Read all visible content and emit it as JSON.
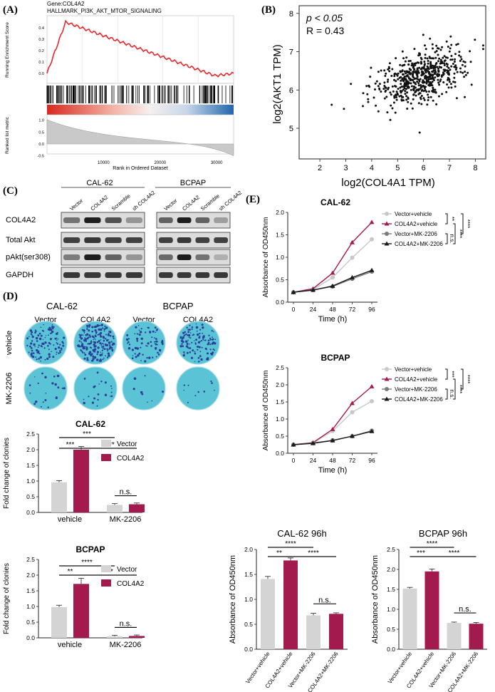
{
  "panel_labels": {
    "A": "(A)",
    "B": "(B)",
    "C": "(C)",
    "D": "(D)",
    "E": "(E)"
  },
  "gsea": {
    "gene": "Gene:COL4A2",
    "set": "HALLMARK_PI3K_AKT_MTOR_SIGNALING",
    "ylabel_top": "Running Enrichment Score",
    "ylabel_bottom": "Ranked list metric",
    "xlabel": "Rank in Ordered Dataset",
    "yticks_top": [
      "0.4",
      "0.3",
      "0.2",
      "0.1",
      "0.0"
    ],
    "yticks_bottom": [
      "1.0",
      "0.5",
      "0.0",
      "-0.5"
    ],
    "xticks": [
      "10000",
      "20000",
      "30000"
    ]
  },
  "scatter": {
    "stat_p": "p < 0.05",
    "stat_r": "R = 0.43",
    "ylabel": "log2(AKT1 TPM)",
    "xlabel": "log2(COL4A1 TPM)",
    "xticks": [
      "2",
      "3",
      "4",
      "5",
      "6",
      "7",
      "8"
    ],
    "yticks": [
      "5",
      "6",
      "7",
      "8"
    ]
  },
  "western": {
    "groups": [
      "CAL-62",
      "BCPAP"
    ],
    "lanes": [
      "Vector",
      "COL4A2",
      "Scramble",
      "sh COL4A2"
    ],
    "rows": [
      "COL4A2",
      "Total Akt",
      "pAkt(ser308)",
      "GAPDH"
    ]
  },
  "colony_images": {
    "groups": [
      "CAL-62",
      "BCPAP"
    ],
    "cols": [
      "Vector",
      "COL4A2",
      "Vector",
      "COL4A2"
    ],
    "rows": [
      "vehicle",
      "MK-2206"
    ]
  },
  "colors": {
    "vector": "#d4d4d4",
    "col4a2": "#a31a4f",
    "dish": "#5bc3d6",
    "gray_line": "#7a7a7a",
    "light_line": "#c8c8c8",
    "black": "#1a1a1a"
  },
  "chart_data": [
    {
      "type": "bar",
      "id": "clone_cal62",
      "title": "CAL-62",
      "ylabel": "Fold change of clonies",
      "ylim": [
        0,
        2.5
      ],
      "yticks": [
        "0.0",
        "0.5",
        "1.0",
        "1.5",
        "2.0",
        "2.5"
      ],
      "categories": [
        "vehicle",
        "MK-2206"
      ],
      "series": [
        {
          "name": "Vector",
          "values": [
            0.96,
            0.24
          ]
        },
        {
          "name": "COL4A2",
          "values": [
            2.0,
            0.26
          ]
        }
      ],
      "errors": [
        [
          0.05,
          0.04
        ],
        [
          0.1,
          0.04
        ]
      ],
      "sig": [
        "***",
        "***",
        "****",
        "n.s."
      ]
    },
    {
      "type": "bar",
      "id": "clone_bcpap",
      "title": "BCPAP",
      "ylabel": "Fold change of clonies",
      "ylim": [
        0,
        2.5
      ],
      "yticks": [
        "0.0",
        "0.5",
        "1.0",
        "1.5",
        "2.0",
        "2.5"
      ],
      "categories": [
        "vehicle",
        "MK-2206"
      ],
      "series": [
        {
          "name": "Vector",
          "values": [
            0.98,
            0.05
          ]
        },
        {
          "name": "COL4A2",
          "values": [
            1.72,
            0.06
          ]
        }
      ],
      "errors": [
        [
          0.06,
          0.03
        ],
        [
          0.18,
          0.03
        ]
      ],
      "sig": [
        "****",
        "**",
        "***",
        "n.s."
      ]
    },
    {
      "type": "line",
      "id": "cck8_cal62",
      "title": "CAL-62",
      "ylabel": "Absorbance of OD450nm",
      "xlabel": "Time (h)",
      "x": [
        0,
        24,
        48,
        72,
        96
      ],
      "ylim": [
        0,
        2.0
      ],
      "yticks": [
        "0.0",
        "0.5",
        "1.0",
        "1.5",
        "2.0"
      ],
      "xticks": [
        "0",
        "24",
        "48",
        "72",
        "96"
      ],
      "series": [
        {
          "name": "Vector+vehicle",
          "values": [
            0.22,
            0.28,
            0.55,
            0.99,
            1.4
          ]
        },
        {
          "name": "COL4A2+vehicle",
          "values": [
            0.22,
            0.3,
            0.65,
            1.33,
            1.78
          ]
        },
        {
          "name": "Vector+MK-2206",
          "values": [
            0.22,
            0.27,
            0.35,
            0.52,
            0.68
          ]
        },
        {
          "name": "COL4A2+MK-2206",
          "values": [
            0.22,
            0.27,
            0.36,
            0.55,
            0.71
          ]
        }
      ],
      "sig": [
        "**",
        "n.s.",
        "****",
        "****"
      ]
    },
    {
      "type": "line",
      "id": "cck8_bcpap",
      "title": "BCPAP",
      "ylabel": "Absorbance of OD450nm",
      "xlabel": "Time (h)",
      "x": [
        0,
        24,
        48,
        72,
        96
      ],
      "ylim": [
        0,
        2.5
      ],
      "yticks": [
        "0.0",
        "0.5",
        "1.0",
        "1.5",
        "2.0",
        "2.5"
      ],
      "xticks": [
        "0",
        "24",
        "48",
        "72",
        "96"
      ],
      "series": [
        {
          "name": "Vector+vehicle",
          "values": [
            0.25,
            0.3,
            0.65,
            1.2,
            1.52
          ]
        },
        {
          "name": "COL4A2+vehicle",
          "values": [
            0.25,
            0.31,
            0.7,
            1.46,
            1.95
          ]
        },
        {
          "name": "Vector+MK-2206",
          "values": [
            0.25,
            0.3,
            0.38,
            0.5,
            0.66
          ]
        },
        {
          "name": "COL4A2+MK-2206",
          "values": [
            0.25,
            0.29,
            0.37,
            0.5,
            0.64
          ]
        }
      ],
      "sig": [
        "***",
        "n.s.",
        "****",
        "****"
      ]
    },
    {
      "type": "bar",
      "id": "od_cal62",
      "title": "CAL-62  96h",
      "ylabel": "Absorbance of OD450nm",
      "ylim": [
        0,
        2.0
      ],
      "yticks": [
        "0.0",
        "0.5",
        "1.0",
        "1.5",
        "2.0"
      ],
      "categories": [
        "Vector+vehicle",
        "COL4A2+vehicle",
        "Vector+MK-2206",
        "COL4A2+MK-2206"
      ],
      "values": [
        1.41,
        1.78,
        0.68,
        0.71
      ],
      "errors": [
        0.05,
        0.05,
        0.04,
        0.02
      ],
      "sig": [
        "****",
        "**",
        "****",
        "n.s."
      ]
    },
    {
      "type": "bar",
      "id": "od_bcpap",
      "title": "BCPAP  96h",
      "ylabel": "Absorbance of OD450nm",
      "ylim": [
        0,
        2.5
      ],
      "yticks": [
        "0.0",
        "0.5",
        "1.0",
        "1.5",
        "2.0",
        "2.5"
      ],
      "categories": [
        "Vector+vehicle",
        "COL4A2+vehicle",
        "Vector+MK-2206",
        "COL4A2+MK-2206"
      ],
      "values": [
        1.52,
        1.95,
        0.66,
        0.64
      ],
      "errors": [
        0.03,
        0.06,
        0.02,
        0.03
      ],
      "sig": [
        "****",
        "***",
        "****",
        "n.s."
      ]
    }
  ]
}
